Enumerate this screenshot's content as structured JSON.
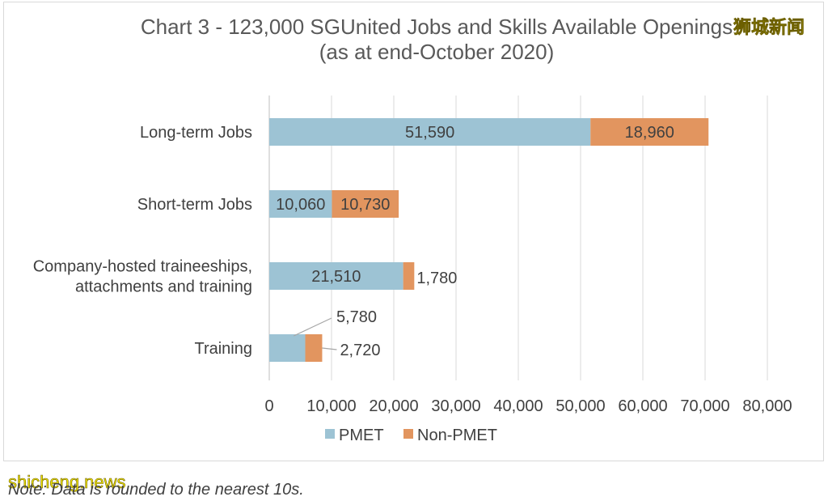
{
  "chart_data": {
    "type": "bar",
    "orientation": "horizontal",
    "stacked": true,
    "title_lines": [
      "Chart 3 - 123,000 SGUnited Jobs and Skills Available Openings",
      "(as at end-October 2020)"
    ],
    "categories": [
      [
        "Long-term Jobs"
      ],
      [
        "Short-term Jobs"
      ],
      [
        "Company-hosted traineeships,",
        "attachments and training"
      ],
      [
        "Training"
      ]
    ],
    "series": [
      {
        "name": "PMET",
        "color": "#9dc3d4",
        "values": [
          51590,
          10060,
          21510,
          5780
        ],
        "labels": [
          "51,590",
          "10,060",
          "21,510",
          "5,780"
        ]
      },
      {
        "name": "Non-PMET",
        "color": "#e2955f",
        "values": [
          18960,
          10730,
          1780,
          2720
        ],
        "labels": [
          "18,960",
          "10,730",
          "1,780",
          "2,720"
        ]
      }
    ],
    "xlim": [
      0,
      80000
    ],
    "x_ticks": [
      "0",
      "10,000",
      "20,000",
      "30,000",
      "40,000",
      "50,000",
      "60,000",
      "70,000",
      "80,000"
    ],
    "grid": "vertical",
    "legend_position": "bottom"
  },
  "note": "Note: Data is rounded to the nearest 10s.",
  "watermarks": {
    "top_right": "狮城新闻",
    "bottom_left": "shicheng.news"
  }
}
